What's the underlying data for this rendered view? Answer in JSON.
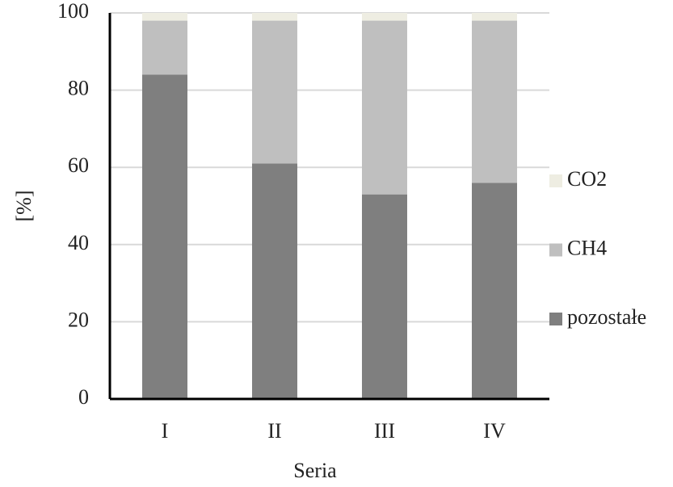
{
  "chart_data": {
    "type": "stacked_bar",
    "x_label": "Seria",
    "y_label": "[%]",
    "categories": [
      "I",
      "II",
      "III",
      "IV"
    ],
    "series": [
      {
        "name": "pozostałe",
        "color": "#7f7f7f",
        "values": [
          84,
          61,
          53,
          56
        ]
      },
      {
        "name": "CH4",
        "color": "#bfbfbf",
        "values": [
          14,
          37,
          45,
          42
        ]
      },
      {
        "name": "CO2",
        "color": "#eeede2",
        "values": [
          2,
          2,
          2,
          2
        ]
      }
    ],
    "ylim": [
      0,
      100
    ],
    "yticks": [
      0,
      20,
      40,
      60,
      80,
      100
    ],
    "grid": true,
    "legend": "right"
  }
}
